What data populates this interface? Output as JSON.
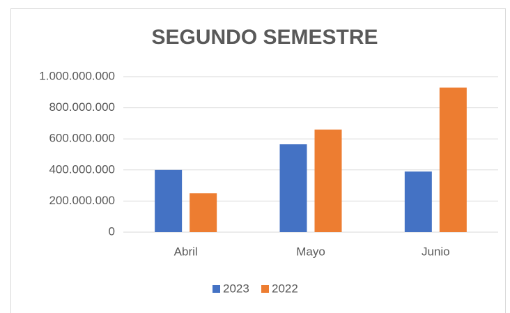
{
  "chart_data": {
    "type": "bar",
    "title": "SEGUNDO SEMESTRE",
    "categories": [
      "Abril",
      "Mayo",
      "Junio"
    ],
    "series": [
      {
        "name": "2023",
        "color": "#4472c4",
        "values": [
          400000000,
          565000000,
          390000000
        ]
      },
      {
        "name": "2022",
        "color": "#ed7d31",
        "values": [
          250000000,
          660000000,
          930000000
        ]
      }
    ],
    "ylim": [
      0,
      1000000000
    ],
    "yticks": [
      0,
      {
        "value": 200000000,
        "label": "200.000.000"
      },
      {
        "value": 400000000,
        "label": "400.000.000"
      },
      {
        "value": 600000000,
        "label": "600.000.000"
      },
      {
        "value": 800000000,
        "label": "800.000.000"
      },
      {
        "value": 1000000000,
        "label": "1.000.000.000"
      }
    ],
    "grid": true,
    "legend": "bottom"
  }
}
